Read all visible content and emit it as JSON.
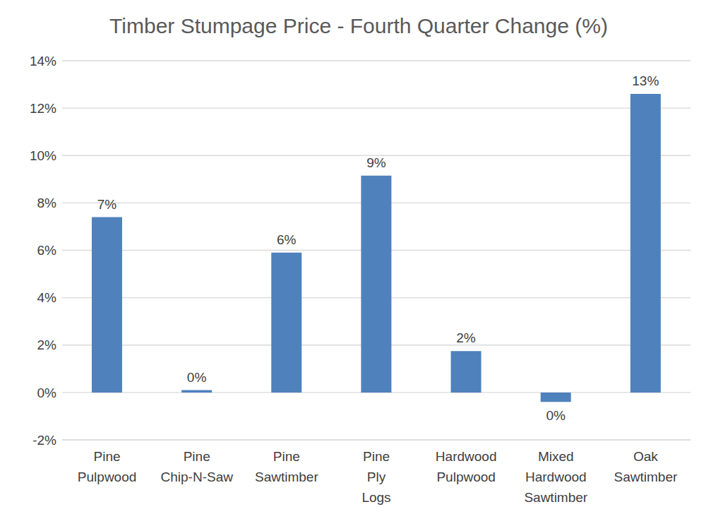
{
  "chart_data": {
    "type": "bar",
    "title": "Timber Stumpage Price - Fourth Quarter Change (%)",
    "categories": [
      "Pine Pulpwood",
      "Pine Chip-N-Saw",
      "Pine Sawtimber",
      "Pine Ply Logs",
      "Hardwood Pulpwood",
      "Mixed Hardwood Sawtimber",
      "Oak Sawtimber"
    ],
    "values": [
      7.4,
      0.1,
      5.9,
      9.15,
      1.75,
      -0.4,
      12.6
    ],
    "value_labels": [
      "7%",
      "0%",
      "6%",
      "9%",
      "2%",
      "0%",
      "13%"
    ],
    "color": "#4f81bd",
    "ylim": [
      -2,
      14
    ],
    "yticks": [
      {
        "value": -2,
        "label": "-2%"
      },
      {
        "value": 0,
        "label": "0%"
      },
      {
        "value": 2,
        "label": "2%"
      },
      {
        "value": 4,
        "label": "4%"
      },
      {
        "value": 6,
        "label": "6%"
      },
      {
        "value": 8,
        "label": "8%"
      },
      {
        "value": 10,
        "label": "10%"
      },
      {
        "value": 12,
        "label": "12%"
      },
      {
        "value": 14,
        "label": "14%"
      }
    ],
    "grid": true,
    "data_labels": true
  }
}
